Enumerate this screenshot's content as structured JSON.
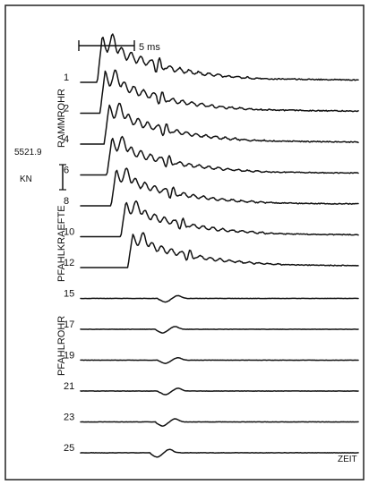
{
  "chart_data": {
    "type": "line",
    "scale_time_label": "5 ms",
    "scale_force_value": "5521.9",
    "scale_force_unit": "KN",
    "group_labels": [
      "RAMMROHR",
      "PFAHLKRAEFTE",
      "PFAHLROHR"
    ],
    "xlabel": "ZEIT",
    "series": [
      {
        "name": "1",
        "kind": "pulse",
        "arrival": 0.06,
        "amp": 1.0
      },
      {
        "name": "2",
        "kind": "pulse",
        "arrival": 0.07,
        "amp": 0.9
      },
      {
        "name": "4",
        "kind": "pulse",
        "arrival": 0.085,
        "amp": 0.85
      },
      {
        "name": "6",
        "kind": "pulse",
        "arrival": 0.095,
        "amp": 0.8
      },
      {
        "name": "8",
        "kind": "pulse",
        "arrival": 0.11,
        "amp": 0.78
      },
      {
        "name": "10",
        "kind": "pulse",
        "arrival": 0.145,
        "amp": 0.75
      },
      {
        "name": "12",
        "kind": "pulse",
        "arrival": 0.17,
        "amp": 0.72
      },
      {
        "name": "15",
        "kind": "flat",
        "arrival": 0.3,
        "amp": 0.25
      },
      {
        "name": "17",
        "kind": "flat",
        "arrival": 0.29,
        "amp": 0.25
      },
      {
        "name": "19",
        "kind": "flat",
        "arrival": 0.3,
        "amp": 0.22
      },
      {
        "name": "21",
        "kind": "flat",
        "arrival": 0.3,
        "amp": 0.25
      },
      {
        "name": "23",
        "kind": "flat",
        "arrival": 0.29,
        "amp": 0.28
      },
      {
        "name": "25",
        "kind": "flat",
        "arrival": 0.27,
        "amp": 0.3
      }
    ]
  }
}
